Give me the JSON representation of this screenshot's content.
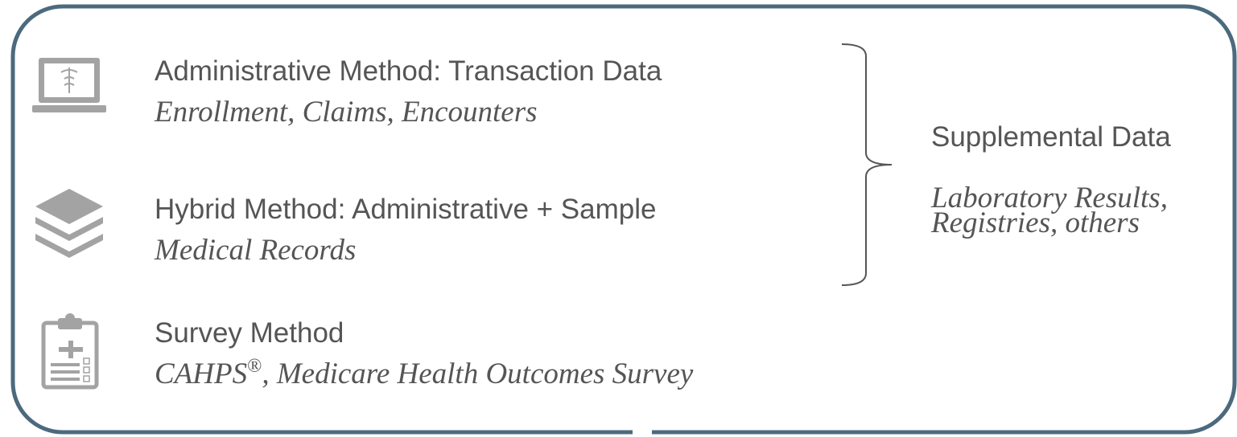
{
  "items": [
    {
      "title": "Administrative Method: Transaction Data",
      "subtitle": "Enrollment, Claims, Encounters"
    },
    {
      "title": "Hybrid Method: Administrative + Sample",
      "subtitle": "Medical Records"
    },
    {
      "title": "Survey Method",
      "subtitle_parts": [
        "CAHPS",
        "®",
        ", Medicare Health Outcomes Survey"
      ]
    }
  ],
  "supplemental": {
    "title": "Supplemental Data",
    "lines": [
      "Laboratory Results,",
      "Registries, others"
    ]
  }
}
